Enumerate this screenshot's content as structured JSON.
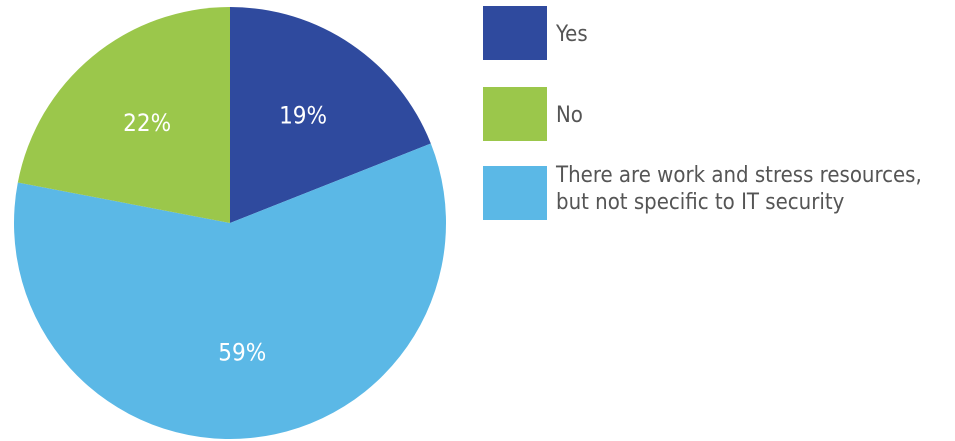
{
  "chart_data": {
    "type": "pie",
    "start_angle_deg": 0,
    "direction": "clockwise",
    "legend_position": "right",
    "slices": [
      {
        "label": "Yes",
        "value": 19,
        "value_label": "19%",
        "color": "#2f4a9e"
      },
      {
        "label": "There are work and stress resources, but not specific to IT security",
        "value": 59,
        "value_label": "59%",
        "color": "#5bb8e6"
      },
      {
        "label": "No",
        "value": 22,
        "value_label": "22%",
        "color": "#9bc74b"
      }
    ],
    "legend": [
      {
        "lines": [
          "Yes"
        ],
        "color": "#2f4a9e"
      },
      {
        "lines": [
          "No"
        ],
        "color": "#9bc74b"
      },
      {
        "lines": [
          "There are work and stress resources,",
          "but not specific to IT security"
        ],
        "color": "#5bb8e6"
      }
    ]
  }
}
